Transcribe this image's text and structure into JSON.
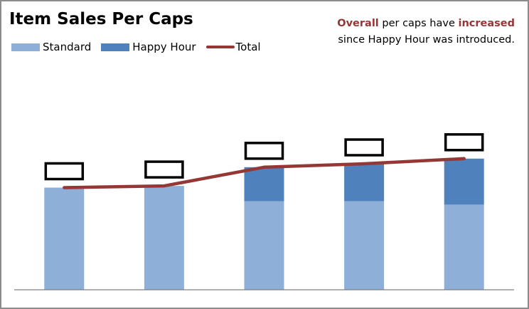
{
  "chart_data": {
    "type": "bar",
    "title": "Item Sales Per Caps",
    "categories": [
      "",
      "",
      "",
      "",
      ""
    ],
    "series": [
      {
        "name": "Standard",
        "kind": "stacked-bar",
        "color": "#8EB0D8",
        "values": [
          3.0,
          3.05,
          2.6,
          2.6,
          2.5
        ]
      },
      {
        "name": "Happy Hour",
        "kind": "stacked-bar",
        "color": "#4F81BD",
        "values": [
          0,
          0,
          1.0,
          1.1,
          1.35
        ]
      },
      {
        "name": "Total",
        "kind": "line",
        "color": "#953735",
        "values": [
          3.0,
          3.05,
          3.6,
          3.7,
          3.85
        ]
      }
    ],
    "ylim": [
      0,
      6
    ],
    "xlabel": "",
    "ylabel": "",
    "grid": false,
    "legend_position": "top-left",
    "data_labels": [
      "",
      "",
      "",
      "",
      ""
    ],
    "annotation": {
      "emphasis_color": "#953735",
      "line1": [
        {
          "text": "Overall",
          "emphasis": true
        },
        {
          "text": " per caps have ",
          "emphasis": false
        },
        {
          "text": "increased",
          "emphasis": true
        }
      ],
      "line2": "since Happy Hour was introduced."
    }
  }
}
